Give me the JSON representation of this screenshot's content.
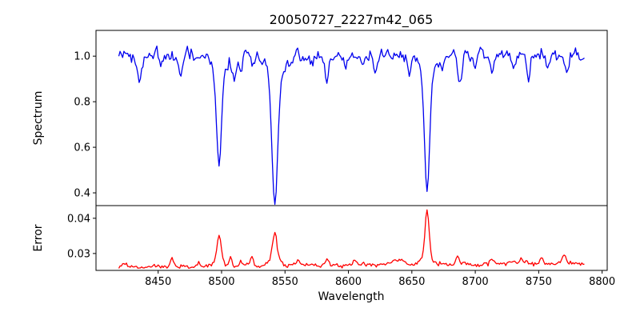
{
  "figure": {
    "background_color": "#ffffff",
    "text_color": "#000000",
    "spine_color": "#000000"
  },
  "chart_data": {
    "type": "line",
    "title": "20050727_2227m42_065",
    "xlabel": "Wavelength",
    "grid": false,
    "legend": "none",
    "xlim": [
      8401,
      8804
    ],
    "xticks": [
      8450,
      8500,
      8550,
      8600,
      8650,
      8700,
      8750,
      8800
    ],
    "x_range": [
      8419,
      8786
    ],
    "x_step": 1,
    "panels": [
      {
        "name": "spectrum",
        "ylabel": "Spectrum",
        "line_color": "#0000ee",
        "ylim": [
          0.344,
          1.113
        ],
        "yticks": [
          {
            "value": 0.4,
            "label": "0.4"
          },
          {
            "value": 0.6,
            "label": "0.6"
          },
          {
            "value": 0.8,
            "label": "0.8"
          },
          {
            "value": 1.0,
            "label": "1.0"
          }
        ],
        "continuum_level": 1.0,
        "noise_sigma": 0.016,
        "noise_seed": 20050727,
        "absorption_lines": [
          {
            "center": 8435,
            "depth": 0.1,
            "width": 1.6
          },
          {
            "center": 8452,
            "depth": 0.055,
            "width": 1.2
          },
          {
            "center": 8468,
            "depth": 0.085,
            "width": 1.4
          },
          {
            "center": 8498,
            "depth": 0.4,
            "width": 1.8
          },
          {
            "center": 8498,
            "depth": 0.08,
            "width": 5.0
          },
          {
            "center": 8510,
            "depth": 0.1,
            "width": 1.5
          },
          {
            "center": 8515,
            "depth": 0.075,
            "width": 1.2
          },
          {
            "center": 8525,
            "depth": 0.065,
            "width": 1.2
          },
          {
            "center": 8542,
            "depth": 0.55,
            "width": 2.2
          },
          {
            "center": 8542,
            "depth": 0.1,
            "width": 6.0
          },
          {
            "center": 8583,
            "depth": 0.1,
            "width": 1.5
          },
          {
            "center": 8598,
            "depth": 0.065,
            "width": 1.2
          },
          {
            "center": 8611,
            "depth": 0.055,
            "width": 1.2
          },
          {
            "center": 8621,
            "depth": 0.075,
            "width": 1.3
          },
          {
            "center": 8648,
            "depth": 0.085,
            "width": 1.3
          },
          {
            "center": 8662,
            "depth": 0.5,
            "width": 2.0
          },
          {
            "center": 8662,
            "depth": 0.09,
            "width": 5.5
          },
          {
            "center": 8674,
            "depth": 0.06,
            "width": 1.2
          },
          {
            "center": 8688,
            "depth": 0.115,
            "width": 1.5
          },
          {
            "center": 8700,
            "depth": 0.07,
            "width": 1.2
          },
          {
            "center": 8713,
            "depth": 0.095,
            "width": 1.4
          },
          {
            "center": 8730,
            "depth": 0.085,
            "width": 1.3
          },
          {
            "center": 8742,
            "depth": 0.105,
            "width": 1.4
          },
          {
            "center": 8757,
            "depth": 0.07,
            "width": 1.2
          },
          {
            "center": 8772,
            "depth": 0.08,
            "width": 1.3
          }
        ],
        "deepest_points": [
          [
            8498,
            0.53
          ],
          [
            8542,
            0.365
          ],
          [
            8662,
            0.42
          ]
        ]
      },
      {
        "name": "error",
        "ylabel": "Error",
        "line_color": "#ff0000",
        "ylim": [
          0.0252,
          0.0436
        ],
        "yticks": [
          {
            "value": 0.03,
            "label": "0.03"
          },
          {
            "value": 0.04,
            "label": "0.04"
          }
        ],
        "baseline_level": 0.0263,
        "baseline_tilt": 0.0009,
        "noise_sigma": 0.00035,
        "noise_seed": 2227,
        "peaks": [
          {
            "center": 8423,
            "height": 0.0013,
            "width": 1.2
          },
          {
            "center": 8461,
            "height": 0.0024,
            "width": 1.3
          },
          {
            "center": 8482,
            "height": 0.0012,
            "width": 1.2
          },
          {
            "center": 8498,
            "height": 0.0075,
            "width": 1.7
          },
          {
            "center": 8498,
            "height": 0.001,
            "width": 4.5
          },
          {
            "center": 8507,
            "height": 0.002,
            "width": 1.2
          },
          {
            "center": 8515,
            "height": 0.002,
            "width": 1.2
          },
          {
            "center": 8524,
            "height": 0.0024,
            "width": 1.2
          },
          {
            "center": 8542,
            "height": 0.0085,
            "width": 1.8
          },
          {
            "center": 8542,
            "height": 0.0012,
            "width": 5.0
          },
          {
            "center": 8560,
            "height": 0.0012,
            "width": 1.2
          },
          {
            "center": 8583,
            "height": 0.0016,
            "width": 1.3
          },
          {
            "center": 8605,
            "height": 0.0016,
            "width": 1.2
          },
          {
            "center": 8640,
            "height": 0.0015,
            "width": 4.0
          },
          {
            "center": 8662,
            "height": 0.0135,
            "width": 1.6
          },
          {
            "center": 8662,
            "height": 0.002,
            "width": 5.0
          },
          {
            "center": 8686,
            "height": 0.003,
            "width": 1.0
          },
          {
            "center": 8713,
            "height": 0.0014,
            "width": 1.2
          },
          {
            "center": 8736,
            "height": 0.0018,
            "width": 1.2
          },
          {
            "center": 8752,
            "height": 0.002,
            "width": 1.2
          },
          {
            "center": 8770,
            "height": 0.0022,
            "width": 1.3
          }
        ],
        "highest_points": [
          [
            8498,
            0.035
          ],
          [
            8542,
            0.036
          ],
          [
            8662,
            0.0425
          ]
        ]
      }
    ]
  }
}
